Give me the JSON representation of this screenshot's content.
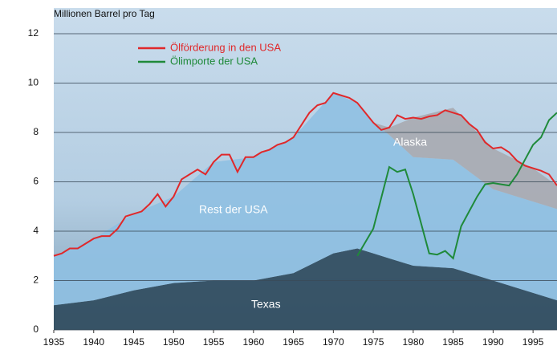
{
  "chart_data": {
    "type": "area-line",
    "y_label": "Millionen Barrel pro Tag",
    "xlim": [
      1935,
      1998
    ],
    "ylim": [
      0,
      12
    ],
    "xticks": [
      1935,
      1940,
      1945,
      1950,
      1955,
      1960,
      1965,
      1970,
      1975,
      1980,
      1985,
      1990,
      1995
    ],
    "yticks": [
      0,
      2,
      4,
      6,
      8,
      10,
      12
    ],
    "grid": true,
    "areas": {
      "x": [
        1935,
        1940,
        1945,
        1950,
        1955,
        1960,
        1965,
        1970,
        1973,
        1975,
        1977,
        1980,
        1985,
        1990,
        1995,
        1998
      ],
      "series": [
        {
          "name": "Texas",
          "color": "#2f4a5d",
          "values": [
            1.0,
            1.2,
            1.6,
            1.9,
            2.0,
            2.0,
            2.3,
            3.1,
            3.3,
            3.1,
            2.9,
            2.6,
            2.5,
            2.0,
            1.5,
            1.2
          ]
        },
        {
          "name": "Rest der USA",
          "color": "#8fc0e2",
          "values": [
            2.0,
            2.5,
            3.1,
            3.5,
            4.8,
            5.0,
            5.5,
            6.5,
            5.9,
            5.3,
            5.0,
            4.4,
            4.4,
            3.7,
            3.7,
            3.7
          ]
        },
        {
          "name": "Alaska",
          "color": "#a8aab0",
          "values": [
            0,
            0,
            0,
            0,
            0,
            0,
            0,
            0,
            0,
            0,
            0.3,
            1.6,
            2.1,
            1.65,
            1.35,
            0.95
          ]
        }
      ]
    },
    "series": [
      {
        "name": "Ölförderung in den USA",
        "color": "#e0282a",
        "x": [
          1935,
          1936,
          1937,
          1938,
          1939,
          1940,
          1941,
          1942,
          1943,
          1944,
          1945,
          1946,
          1947,
          1948,
          1949,
          1950,
          1951,
          1952,
          1953,
          1954,
          1955,
          1956,
          1957,
          1958,
          1959,
          1960,
          1961,
          1962,
          1963,
          1964,
          1965,
          1966,
          1967,
          1968,
          1969,
          1970,
          1971,
          1972,
          1973,
          1974,
          1975,
          1976,
          1977,
          1978,
          1979,
          1980,
          1981,
          1982,
          1983,
          1984,
          1985,
          1986,
          1987,
          1988,
          1989,
          1990,
          1991,
          1992,
          1993,
          1994,
          1995,
          1996,
          1997,
          1998
        ],
        "values": [
          3.0,
          3.1,
          3.3,
          3.3,
          3.5,
          3.7,
          3.8,
          3.8,
          4.1,
          4.6,
          4.7,
          4.8,
          5.1,
          5.5,
          5.0,
          5.4,
          6.1,
          6.3,
          6.5,
          6.3,
          6.8,
          7.1,
          7.1,
          6.4,
          7.0,
          7.0,
          7.2,
          7.3,
          7.5,
          7.6,
          7.8,
          8.3,
          8.8,
          9.1,
          9.2,
          9.6,
          9.5,
          9.4,
          9.2,
          8.8,
          8.4,
          8.1,
          8.2,
          8.7,
          8.55,
          8.6,
          8.55,
          8.65,
          8.7,
          8.9,
          8.8,
          8.7,
          8.35,
          8.1,
          7.6,
          7.35,
          7.4,
          7.2,
          6.85,
          6.65,
          6.55,
          6.45,
          6.3,
          5.85
        ]
      },
      {
        "name": "Ölimporte der USA",
        "color": "#1f8a3a",
        "x": [
          1973,
          1975,
          1977,
          1978,
          1979,
          1980,
          1981,
          1982,
          1983,
          1984,
          1985,
          1986,
          1987,
          1988,
          1989,
          1990,
          1991,
          1992,
          1993,
          1994,
          1995,
          1996,
          1997,
          1998
        ],
        "values": [
          3.0,
          4.1,
          6.6,
          6.4,
          6.5,
          5.5,
          4.3,
          3.1,
          3.05,
          3.2,
          2.9,
          4.2,
          4.8,
          5.4,
          5.9,
          5.95,
          5.9,
          5.85,
          6.3,
          6.9,
          7.5,
          7.8,
          8.5,
          8.8
        ]
      }
    ]
  }
}
